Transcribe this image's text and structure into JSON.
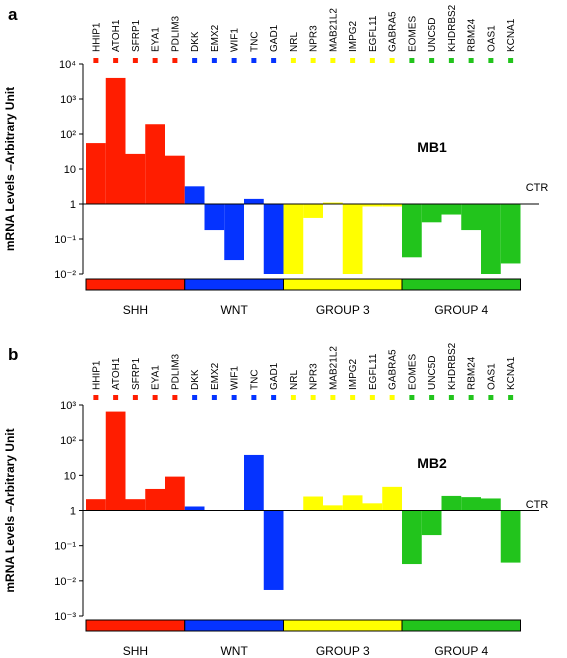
{
  "colors": {
    "SHH": "#ff1d00",
    "WNT": "#0533ff",
    "GROUP 3": "#ffff00",
    "GROUP 4": "#22c41c"
  },
  "genes": [
    "HHIP1",
    "ATOH1",
    "SFRP1",
    "EYA1",
    "PDLIM3",
    "DKK",
    "EMX2",
    "WIF1",
    "TNC",
    "GAD1",
    "NRL",
    "NPR3",
    "MAB21L2",
    "IMPG2",
    "EGFL11",
    "GABRA5",
    "EOMES",
    "UNC5D",
    "KHDRBS2",
    "RBM24",
    "OAS1",
    "KCNA1"
  ],
  "chart_data": [
    {
      "type": "bar",
      "panel_label": "a",
      "title": "MB1",
      "ylabel": "mRNA Levels –Arbitrary Unit",
      "reference_label": "CTR",
      "y_scale": "log",
      "ylim": [
        0.01,
        10000
      ],
      "yticks": [
        "10⁻²",
        "10⁻¹",
        "1",
        "10",
        "10²",
        "10³",
        "10⁴"
      ],
      "groups": [
        {
          "name": "SHH",
          "genes": [
            "HHIP1",
            "ATOH1",
            "SFRP1",
            "EYA1",
            "PDLIM3"
          ]
        },
        {
          "name": "WNT",
          "genes": [
            "DKK",
            "EMX2",
            "WIF1",
            "TNC",
            "GAD1"
          ]
        },
        {
          "name": "GROUP 3",
          "genes": [
            "NRL",
            "NPR3",
            "MAB21L2",
            "IMPG2",
            "EGFL11",
            "GABRA5"
          ]
        },
        {
          "name": "GROUP 4",
          "genes": [
            "EOMES",
            "UNC5D",
            "KHDRBS2",
            "RBM24",
            "OAS1",
            "KCNA1"
          ]
        }
      ],
      "values": [
        55,
        4000,
        27,
        190,
        24,
        3.2,
        0.18,
        0.025,
        1.4,
        0.01,
        0.01,
        0.4,
        1.1,
        0.01,
        0.85,
        0.85,
        0.03,
        0.3,
        0.5,
        0.18,
        0.01,
        0.02
      ]
    },
    {
      "type": "bar",
      "panel_label": "b",
      "title": "MB2",
      "ylabel": "mRNA Levels –Arbitrary Unit",
      "reference_label": "CTR",
      "y_scale": "log",
      "ylim": [
        0.001,
        1000
      ],
      "yticks": [
        "10⁻³",
        "10⁻²",
        "10⁻¹",
        "1",
        "10",
        "10²",
        "10³"
      ],
      "groups": [
        {
          "name": "SHH",
          "genes": [
            "HHIP1",
            "ATOH1",
            "SFRP1",
            "EYA1",
            "PDLIM3"
          ]
        },
        {
          "name": "WNT",
          "genes": [
            "DKK",
            "EMX2",
            "WIF1",
            "TNC",
            "GAD1"
          ]
        },
        {
          "name": "GROUP 3",
          "genes": [
            "NRL",
            "NPR3",
            "MAB21L2",
            "IMPG2",
            "EGFL11",
            "GABRA5"
          ]
        },
        {
          "name": "GROUP 4",
          "genes": [
            "EOMES",
            "UNC5D",
            "KHDRBS2",
            "RBM24",
            "OAS1",
            "KCNA1"
          ]
        }
      ],
      "values": [
        2.1,
        650,
        2.1,
        4.1,
        9.2,
        1.3,
        1,
        1,
        38,
        0.0055,
        1,
        2.5,
        1.4,
        2.7,
        1.6,
        4.7,
        0.03,
        0.2,
        2.6,
        2.4,
        2.2,
        0.033
      ]
    }
  ]
}
